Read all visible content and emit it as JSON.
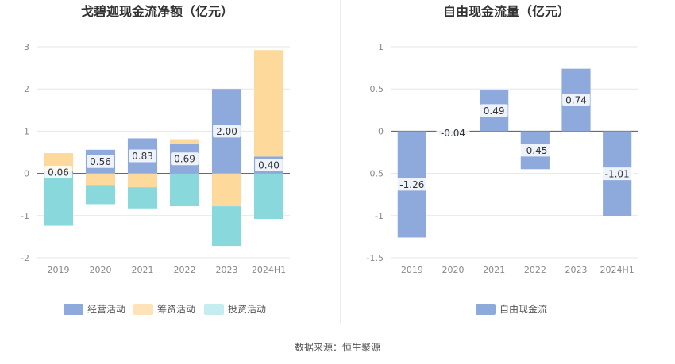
{
  "source_text": "数据来源：恒生聚源",
  "chart_data": [
    {
      "type": "bar",
      "stacked": true,
      "title": "戈碧迦现金流净额（亿元）",
      "categories": [
        "2019",
        "2020",
        "2021",
        "2022",
        "2023",
        "2024H1"
      ],
      "ylim": [
        -2,
        3
      ],
      "yticks": [
        -2,
        -1,
        0,
        1,
        2,
        3
      ],
      "grid": true,
      "legend": "bottom",
      "series": [
        {
          "name": "经营活动",
          "color": "#8eaadc",
          "values": [
            0.06,
            0.56,
            0.83,
            0.69,
            2.0,
            0.4
          ]
        },
        {
          "name": "筹资活动",
          "color": "#fdd99b",
          "values": [
            0.42,
            -0.28,
            -0.33,
            0.12,
            -0.78,
            2.52
          ]
        },
        {
          "name": "投资活动",
          "color": "#88d8dc",
          "values": [
            -1.24,
            -0.45,
            -0.5,
            -0.78,
            -0.94,
            -1.08
          ]
        }
      ],
      "data_labels": [
        "0.06",
        "0.56",
        "0.83",
        "0.69",
        "2.00",
        "0.40"
      ],
      "legend_colors": [
        "#8eaadc",
        "#fde3b7",
        "#c5ecee"
      ]
    },
    {
      "type": "bar",
      "title": "自由现金流量（亿元）",
      "categories": [
        "2019",
        "2020",
        "2021",
        "2022",
        "2023",
        "2024H1"
      ],
      "ylim": [
        -1.5,
        1
      ],
      "yticks": [
        -1.5,
        -1,
        -0.5,
        0,
        0.5,
        1
      ],
      "grid": true,
      "legend": "bottom",
      "series": [
        {
          "name": "自由现金流",
          "color": "#8eaadc",
          "values": [
            -1.26,
            -0.04,
            0.49,
            -0.45,
            0.74,
            -1.01
          ]
        }
      ],
      "data_labels": [
        "-1.26",
        "-0.04",
        "0.49",
        "-0.45",
        "0.74",
        "-1.01"
      ],
      "legend_colors": [
        "#8eaadc"
      ]
    }
  ]
}
